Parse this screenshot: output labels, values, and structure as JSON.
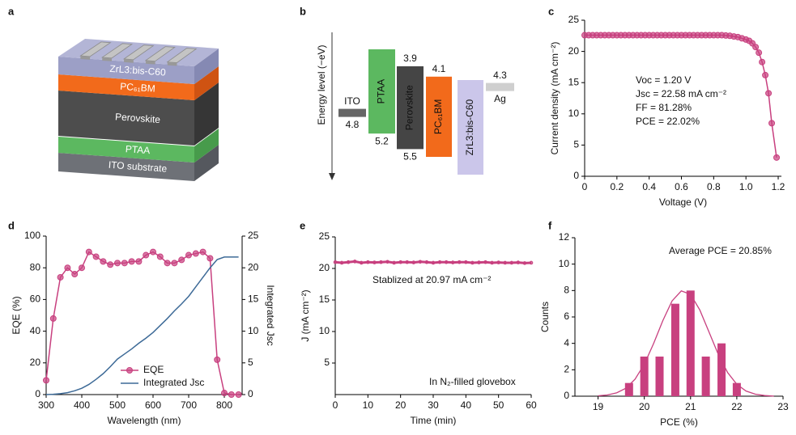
{
  "panel_labels": [
    "a",
    "b",
    "c",
    "d",
    "e",
    "f"
  ],
  "device_stack": {
    "layers": [
      "ZrL3:bis-C60",
      "PC₆₁BM",
      "Perovskite",
      "PTAA",
      "ITO substrate"
    ]
  },
  "energy_diagram": {
    "axis_label": "Energy level (−eV)",
    "materials": [
      {
        "name": "ITO",
        "level": 4.8
      },
      {
        "name": "PTAA",
        "bottom": 5.2
      },
      {
        "name": "Perovskite",
        "top": 3.9,
        "bottom": 5.5
      },
      {
        "name": "PC₆₁BM",
        "top": 4.1
      },
      {
        "name": "ZrL3:bis-C60"
      },
      {
        "name": "Ag",
        "level": 4.3
      }
    ]
  },
  "chart_data": [
    {
      "type": "line",
      "xlabel": "Voltage (V)",
      "ylabel": "Current density (mA cm⁻²)",
      "x": [
        0,
        0.025,
        0.05,
        0.075,
        0.1,
        0.125,
        0.15,
        0.175,
        0.2,
        0.225,
        0.25,
        0.275,
        0.3,
        0.325,
        0.35,
        0.375,
        0.4,
        0.425,
        0.45,
        0.475,
        0.5,
        0.525,
        0.55,
        0.575,
        0.6,
        0.625,
        0.65,
        0.675,
        0.7,
        0.725,
        0.75,
        0.775,
        0.8,
        0.825,
        0.85,
        0.875,
        0.9,
        0.925,
        0.95,
        0.975,
        1.0,
        1.02,
        1.04,
        1.06,
        1.08,
        1.1,
        1.12,
        1.14,
        1.16,
        1.19
      ],
      "series": [
        {
          "color": "#c8407f",
          "markers": true,
          "values": [
            22.6,
            22.6,
            22.6,
            22.6,
            22.6,
            22.6,
            22.6,
            22.6,
            22.6,
            22.6,
            22.6,
            22.6,
            22.6,
            22.6,
            22.6,
            22.6,
            22.6,
            22.6,
            22.6,
            22.6,
            22.6,
            22.6,
            22.6,
            22.6,
            22.6,
            22.6,
            22.6,
            22.6,
            22.6,
            22.6,
            22.6,
            22.6,
            22.6,
            22.6,
            22.6,
            22.55,
            22.5,
            22.4,
            22.3,
            22.1,
            21.9,
            21.7,
            21.3,
            20.7,
            19.8,
            18.3,
            16.2,
            13.3,
            8.5,
            3
          ]
        }
      ],
      "xlim": [
        0,
        1.22
      ],
      "xticks": [
        0,
        0.2,
        0.4,
        0.6,
        0.8,
        {
          "value": 1,
          "label": "1.0"
        },
        1.2
      ],
      "ylim": [
        0,
        25
      ],
      "yticks": [
        0,
        5,
        10,
        15,
        20,
        25
      ],
      "annotations": [
        "Voc = 1.20 V",
        "Jsc = 22.58 mA cm⁻²",
        "FF = 81.28%",
        "PCE = 22.02%"
      ]
    },
    {
      "type": "line",
      "xlabel": "Wavelength (nm)",
      "ylabel": "EQE (%)",
      "y2label": "Integrated Jsc",
      "x": [
        300,
        320,
        340,
        360,
        380,
        400,
        420,
        440,
        460,
        480,
        500,
        520,
        540,
        560,
        580,
        600,
        620,
        640,
        660,
        680,
        700,
        720,
        740,
        760,
        780,
        800,
        820,
        840
      ],
      "series": [
        {
          "name": "EQE",
          "color": "#c8407f",
          "markers": true,
          "values": [
            9,
            48,
            74,
            80,
            76,
            80,
            90,
            87,
            84,
            82,
            83,
            83,
            84,
            84,
            88,
            90,
            87,
            83,
            83,
            85,
            88,
            89,
            90,
            86,
            22,
            1,
            0,
            0
          ]
        },
        {
          "name": "Integrated Jsc",
          "color": "#3d6a97",
          "axis": "y2",
          "values": [
            0,
            0.05,
            0.15,
            0.3,
            0.6,
            1.0,
            1.6,
            2.4,
            3.3,
            4.4,
            5.6,
            6.4,
            7.2,
            8.1,
            8.9,
            9.8,
            10.9,
            12.0,
            13.2,
            14.3,
            15.5,
            17.0,
            18.5,
            20.0,
            21.3,
            21.7,
            21.7,
            21.7
          ]
        }
      ],
      "xlim": [
        300,
        850
      ],
      "xticks": [
        300,
        400,
        500,
        600,
        700,
        800
      ],
      "ylim": [
        0,
        100
      ],
      "yticks": [
        0,
        20,
        40,
        60,
        80,
        100
      ],
      "y2lim": [
        0,
        25
      ],
      "y2ticks": [
        0,
        5,
        10,
        15,
        20,
        25
      ],
      "legend": "lower right"
    },
    {
      "type": "line",
      "xlabel": "Time (min)",
      "ylabel": "J (mA cm⁻²)",
      "x": [
        0,
        2,
        4,
        6,
        8,
        10,
        12,
        14,
        16,
        18,
        20,
        22,
        24,
        26,
        28,
        30,
        32,
        34,
        36,
        38,
        40,
        42,
        44,
        46,
        48,
        50,
        52,
        54,
        56,
        58,
        60
      ],
      "series": [
        {
          "color": "#c8407f",
          "markers": true,
          "values": [
            21.0,
            20.9,
            21.0,
            21.1,
            20.9,
            21.0,
            20.95,
            21.0,
            21.05,
            20.9,
            21.0,
            21.0,
            20.95,
            21.05,
            21.0,
            20.9,
            21.0,
            21.0,
            20.95,
            21.0,
            21.0,
            20.9,
            20.95,
            21.0,
            20.9,
            20.95,
            20.9,
            20.9,
            20.95,
            20.85,
            20.9
          ]
        }
      ],
      "xlim": [
        0,
        60
      ],
      "xticks": [
        0,
        10,
        20,
        30,
        40,
        50,
        60
      ],
      "ylim": [
        0,
        25
      ],
      "yticks": [
        5,
        10,
        15,
        20,
        25
      ],
      "annotations": [
        "Stablized at 20.97 mA cm⁻²",
        "In N₂-filled glovebox"
      ]
    },
    {
      "type": "bar",
      "xlabel": "PCE (%)",
      "ylabel": "Counts",
      "x": [
        19.67,
        20,
        20.33,
        20.67,
        21,
        21.33,
        21.67,
        22
      ],
      "values": [
        1,
        3,
        3,
        7,
        8,
        3,
        4,
        1
      ],
      "color": "#c8407f",
      "fit": {
        "x": [
          19.0,
          19.2,
          19.4,
          19.6,
          19.8,
          20.0,
          20.2,
          20.4,
          20.6,
          20.8,
          21.0,
          21.2,
          21.4,
          21.6,
          21.8,
          22.0,
          22.2,
          22.4,
          22.6,
          22.8
        ],
        "values": [
          0.03,
          0.09,
          0.25,
          0.6,
          1.29,
          2.42,
          3.98,
          5.72,
          7.21,
          7.97,
          7.71,
          6.53,
          4.85,
          3.16,
          1.8,
          0.9,
          0.39,
          0.15,
          0.05,
          0.01
        ]
      },
      "xlim": [
        18.5,
        23
      ],
      "xticks": [
        19,
        20,
        21,
        22,
        23
      ],
      "ylim": [
        0,
        12
      ],
      "yticks": [
        0,
        2,
        4,
        6,
        8,
        10,
        12
      ],
      "annotations": [
        "Average PCE = 20.85%"
      ]
    }
  ]
}
